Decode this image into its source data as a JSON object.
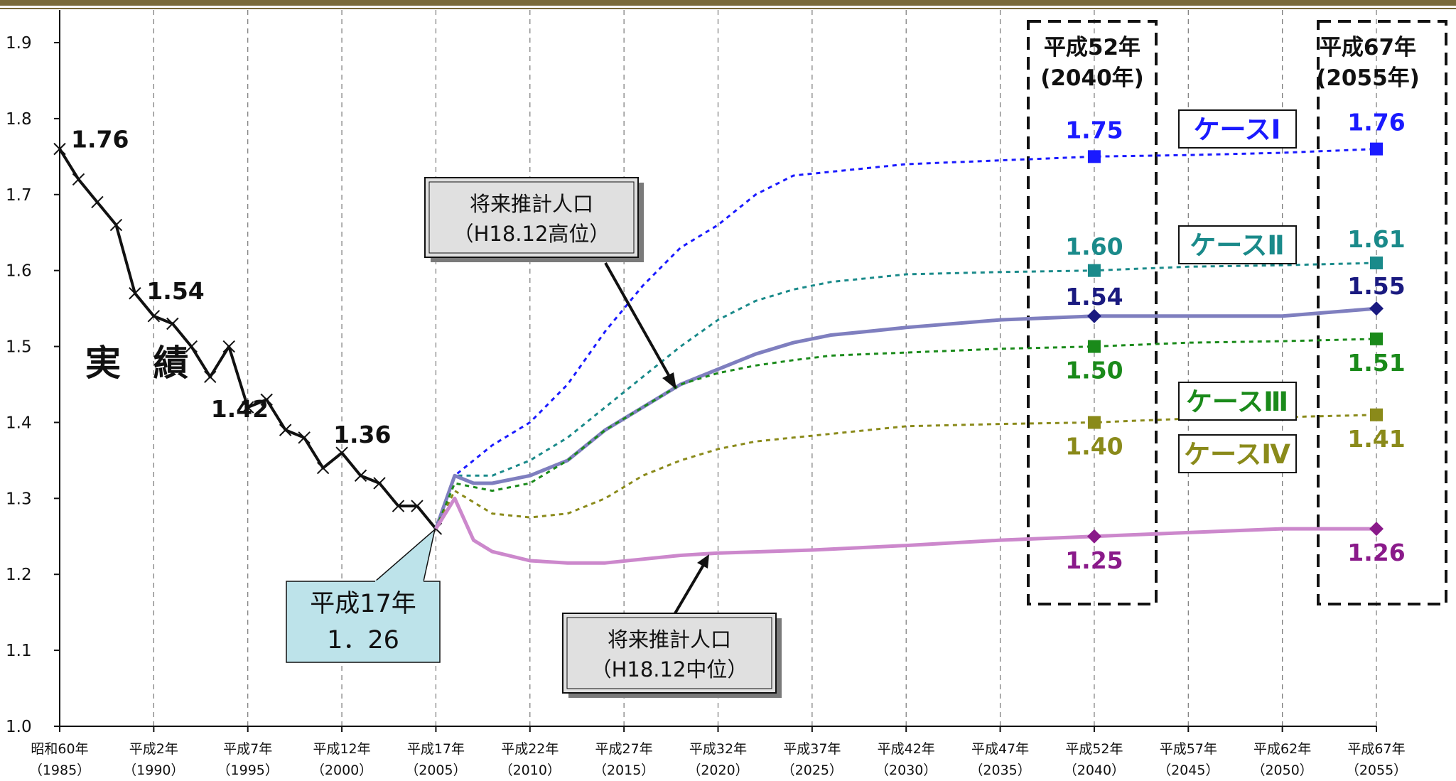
{
  "chart_data": {
    "type": "line",
    "title": "",
    "xlabel": "",
    "ylabel": "",
    "ylim": [
      1.0,
      1.9
    ],
    "y_ticks": [
      "1.0",
      "1.1",
      "1.2",
      "1.3",
      "1.4",
      "1.5",
      "1.6",
      "1.7",
      "1.8",
      "1.9"
    ],
    "x_range": [
      1985,
      2055
    ],
    "x_ticks": [
      {
        "year": 1985,
        "era": "昭和60年",
        "western": "（1985）"
      },
      {
        "year": 1990,
        "era": "平成2年",
        "western": "（1990）"
      },
      {
        "year": 1995,
        "era": "平成7年",
        "western": "（1995）"
      },
      {
        "year": 2000,
        "era": "平成12年",
        "western": "（2000）"
      },
      {
        "year": 2005,
        "era": "平成17年",
        "western": "（2005）"
      },
      {
        "year": 2010,
        "era": "平成22年",
        "western": "（2010）"
      },
      {
        "year": 2015,
        "era": "平成27年",
        "western": "（2015）"
      },
      {
        "year": 2020,
        "era": "平成32年",
        "western": "（2020）"
      },
      {
        "year": 2025,
        "era": "平成37年",
        "western": "（2025）"
      },
      {
        "year": 2030,
        "era": "平成42年",
        "western": "（2030）"
      },
      {
        "year": 2035,
        "era": "平成47年",
        "western": "（2035）"
      },
      {
        "year": 2040,
        "era": "平成52年",
        "western": "（2040）"
      },
      {
        "year": 2045,
        "era": "平成57年",
        "western": "（2045）"
      },
      {
        "year": 2050,
        "era": "平成62年",
        "western": "（2050）"
      },
      {
        "year": 2055,
        "era": "平成67年",
        "western": "（2055）"
      }
    ],
    "grid": "vertical-dashed",
    "series": [
      {
        "name": "実 績",
        "color": "#111111",
        "style": "solid-x-markers",
        "points": [
          [
            1985,
            1.76
          ],
          [
            1986,
            1.72
          ],
          [
            1987,
            1.69
          ],
          [
            1988,
            1.66
          ],
          [
            1989,
            1.57
          ],
          [
            1990,
            1.54
          ],
          [
            1991,
            1.53
          ],
          [
            1992,
            1.5
          ],
          [
            1993,
            1.46
          ],
          [
            1994,
            1.5
          ],
          [
            1995,
            1.42
          ],
          [
            1996,
            1.43
          ],
          [
            1997,
            1.39
          ],
          [
            1998,
            1.38
          ],
          [
            1999,
            1.34
          ],
          [
            2000,
            1.36
          ],
          [
            2001,
            1.33
          ],
          [
            2002,
            1.32
          ],
          [
            2003,
            1.29
          ],
          [
            2004,
            1.29
          ],
          [
            2005,
            1.26
          ]
        ]
      },
      {
        "name": "ケースⅠ",
        "color": "#1a1aff",
        "style": "dotted",
        "points": [
          [
            2005,
            1.26
          ],
          [
            2006,
            1.33
          ],
          [
            2008,
            1.37
          ],
          [
            2010,
            1.4
          ],
          [
            2012,
            1.45
          ],
          [
            2014,
            1.52
          ],
          [
            2016,
            1.58
          ],
          [
            2018,
            1.63
          ],
          [
            2020,
            1.66
          ],
          [
            2022,
            1.7
          ],
          [
            2024,
            1.725
          ],
          [
            2026,
            1.73
          ],
          [
            2028,
            1.735
          ],
          [
            2030,
            1.74
          ],
          [
            2035,
            1.745
          ],
          [
            2040,
            1.75
          ],
          [
            2045,
            1.752
          ],
          [
            2050,
            1.755
          ],
          [
            2055,
            1.76
          ]
        ]
      },
      {
        "name": "ケースⅡ",
        "color": "#1a8a8a",
        "style": "dotted",
        "points": [
          [
            2005,
            1.26
          ],
          [
            2006,
            1.33
          ],
          [
            2008,
            1.33
          ],
          [
            2010,
            1.35
          ],
          [
            2012,
            1.38
          ],
          [
            2014,
            1.42
          ],
          [
            2016,
            1.46
          ],
          [
            2018,
            1.5
          ],
          [
            2020,
            1.535
          ],
          [
            2022,
            1.56
          ],
          [
            2024,
            1.575
          ],
          [
            2026,
            1.585
          ],
          [
            2028,
            1.59
          ],
          [
            2030,
            1.595
          ],
          [
            2035,
            1.598
          ],
          [
            2040,
            1.6
          ],
          [
            2045,
            1.605
          ],
          [
            2050,
            1.607
          ],
          [
            2055,
            1.61
          ]
        ]
      },
      {
        "name": "将来推計人口（H18.12高位）",
        "color": "#7f7fbf",
        "style": "solid",
        "points": [
          [
            2005,
            1.26
          ],
          [
            2006,
            1.33
          ],
          [
            2007,
            1.32
          ],
          [
            2008,
            1.32
          ],
          [
            2010,
            1.33
          ],
          [
            2012,
            1.35
          ],
          [
            2014,
            1.39
          ],
          [
            2016,
            1.42
          ],
          [
            2018,
            1.45
          ],
          [
            2020,
            1.47
          ],
          [
            2022,
            1.49
          ],
          [
            2024,
            1.505
          ],
          [
            2026,
            1.515
          ],
          [
            2028,
            1.52
          ],
          [
            2030,
            1.525
          ],
          [
            2035,
            1.535
          ],
          [
            2040,
            1.54
          ],
          [
            2045,
            1.54
          ],
          [
            2050,
            1.54
          ],
          [
            2055,
            1.55
          ]
        ]
      },
      {
        "name": "ケースⅢ",
        "color": "#1a8a1a",
        "style": "dotted",
        "points": [
          [
            2005,
            1.26
          ],
          [
            2006,
            1.32
          ],
          [
            2008,
            1.31
          ],
          [
            2010,
            1.32
          ],
          [
            2012,
            1.35
          ],
          [
            2014,
            1.39
          ],
          [
            2016,
            1.42
          ],
          [
            2018,
            1.45
          ],
          [
            2020,
            1.465
          ],
          [
            2022,
            1.475
          ],
          [
            2024,
            1.482
          ],
          [
            2026,
            1.488
          ],
          [
            2028,
            1.49
          ],
          [
            2030,
            1.492
          ],
          [
            2035,
            1.497
          ],
          [
            2040,
            1.5
          ],
          [
            2045,
            1.505
          ],
          [
            2050,
            1.507
          ],
          [
            2055,
            1.51
          ]
        ]
      },
      {
        "name": "ケースⅣ",
        "color": "#8a8a1a",
        "style": "dotted",
        "points": [
          [
            2005,
            1.26
          ],
          [
            2006,
            1.31
          ],
          [
            2008,
            1.28
          ],
          [
            2010,
            1.275
          ],
          [
            2012,
            1.28
          ],
          [
            2014,
            1.3
          ],
          [
            2016,
            1.33
          ],
          [
            2018,
            1.35
          ],
          [
            2020,
            1.365
          ],
          [
            2022,
            1.375
          ],
          [
            2024,
            1.38
          ],
          [
            2026,
            1.385
          ],
          [
            2028,
            1.39
          ],
          [
            2030,
            1.395
          ],
          [
            2035,
            1.398
          ],
          [
            2040,
            1.4
          ],
          [
            2045,
            1.405
          ],
          [
            2050,
            1.407
          ],
          [
            2055,
            1.41
          ]
        ]
      },
      {
        "name": "将来推計人口（H18.12中位）",
        "color": "#cc88cc",
        "style": "solid",
        "points": [
          [
            2005,
            1.26
          ],
          [
            2006,
            1.3
          ],
          [
            2007,
            1.245
          ],
          [
            2008,
            1.23
          ],
          [
            2010,
            1.218
          ],
          [
            2012,
            1.215
          ],
          [
            2014,
            1.215
          ],
          [
            2016,
            1.22
          ],
          [
            2018,
            1.225
          ],
          [
            2020,
            1.228
          ],
          [
            2025,
            1.232
          ],
          [
            2030,
            1.238
          ],
          [
            2035,
            1.245
          ],
          [
            2040,
            1.25
          ],
          [
            2045,
            1.255
          ],
          [
            2050,
            1.26
          ],
          [
            2055,
            1.26
          ]
        ]
      }
    ],
    "markers": [
      {
        "x": 2040,
        "y": 1.75,
        "shape": "square",
        "color": "#1a1aff"
      },
      {
        "x": 2055,
        "y": 1.76,
        "shape": "square",
        "color": "#1a1aff"
      },
      {
        "x": 2040,
        "y": 1.6,
        "shape": "square",
        "color": "#1a8a8a"
      },
      {
        "x": 2055,
        "y": 1.61,
        "shape": "square",
        "color": "#1a8a8a"
      },
      {
        "x": 2040,
        "y": 1.54,
        "shape": "diamond",
        "color": "#1a1a80"
      },
      {
        "x": 2055,
        "y": 1.55,
        "shape": "diamond",
        "color": "#1a1a80"
      },
      {
        "x": 2040,
        "y": 1.5,
        "shape": "square",
        "color": "#1a8a1a"
      },
      {
        "x": 2055,
        "y": 1.51,
        "shape": "square",
        "color": "#1a8a1a"
      },
      {
        "x": 2040,
        "y": 1.4,
        "shape": "square",
        "color": "#8a8a1a"
      },
      {
        "x": 2055,
        "y": 1.41,
        "shape": "square",
        "color": "#8a8a1a"
      },
      {
        "x": 2040,
        "y": 1.25,
        "shape": "diamond",
        "color": "#8a1a8a"
      },
      {
        "x": 2055,
        "y": 1.26,
        "shape": "diamond",
        "color": "#8a1a8a"
      }
    ],
    "data_labels": [
      {
        "text": "1.76",
        "x": 1985,
        "y": 1.76,
        "color": "#111111"
      },
      {
        "text": "1.54",
        "x": 1990,
        "y": 1.54,
        "color": "#111111"
      },
      {
        "text": "1.42",
        "x": 1995,
        "y": 1.42,
        "color": "#111111"
      },
      {
        "text": "1.36",
        "x": 2000,
        "y": 1.36,
        "color": "#111111"
      },
      {
        "text": "1.75",
        "x": 2040,
        "y": 1.75,
        "color": "#1a1aff"
      },
      {
        "text": "1.76",
        "x": 2055,
        "y": 1.76,
        "color": "#1a1aff"
      },
      {
        "text": "1.60",
        "x": 2040,
        "y": 1.6,
        "color": "#1a8a8a"
      },
      {
        "text": "1.61",
        "x": 2055,
        "y": 1.61,
        "color": "#1a8a8a"
      },
      {
        "text": "1.54",
        "x": 2040,
        "y": 1.54,
        "color": "#1a1a80"
      },
      {
        "text": "1.55",
        "x": 2055,
        "y": 1.55,
        "color": "#1a1a80"
      },
      {
        "text": "1.50",
        "x": 2040,
        "y": 1.5,
        "color": "#1a8a1a"
      },
      {
        "text": "1.51",
        "x": 2055,
        "y": 1.51,
        "color": "#1a8a1a"
      },
      {
        "text": "1.40",
        "x": 2040,
        "y": 1.4,
        "color": "#8a8a1a"
      },
      {
        "text": "1.41",
        "x": 2055,
        "y": 1.41,
        "color": "#8a8a1a"
      },
      {
        "text": "1.25",
        "x": 2040,
        "y": 1.25,
        "color": "#8a1a8a"
      },
      {
        "text": "1.26",
        "x": 2055,
        "y": 1.26,
        "color": "#8a1a8a"
      }
    ],
    "annotations": {
      "jisseki": "実 績",
      "frame_2040": [
        "平成52年",
        "(2040年)"
      ],
      "frame_2055": [
        "平成67年",
        "(2055年)"
      ],
      "case_labels": [
        {
          "text": "ケースⅠ",
          "color": "#1a1aff"
        },
        {
          "text": "ケースⅡ",
          "color": "#1a8a8a"
        },
        {
          "text": "ケースⅢ",
          "color": "#1a8a1a"
        },
        {
          "text": "ケースⅣ",
          "color": "#8a8a1a"
        }
      ],
      "callout_high": [
        "将来推計人口",
        "（H18.12高位）"
      ],
      "callout_mid": [
        "将来推計人口",
        "（H18.12中位）"
      ],
      "callout_2005": [
        "平成17年",
        "1．26"
      ]
    }
  }
}
